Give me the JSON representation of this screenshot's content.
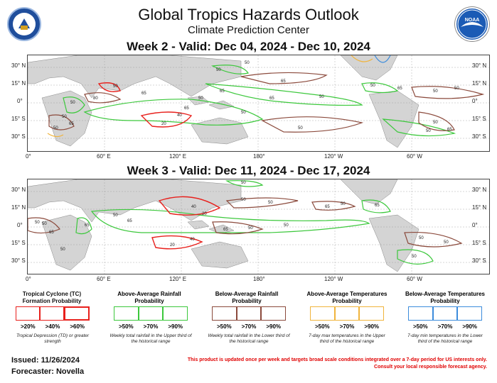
{
  "header": {
    "title": "Global Tropics Hazards Outlook",
    "subtitle": "Climate Prediction Center",
    "logo_left": "doc-seal-icon",
    "logo_right": "noaa-logo-icon",
    "logo_right_text": "NOAA"
  },
  "week2": {
    "label": "Week 2 - Valid: Dec 04, 2024 - Dec 10, 2024"
  },
  "week3": {
    "label": "Week 3 - Valid: Dec 11, 2024 - Dec 17, 2024"
  },
  "axes": {
    "lat_labels": [
      "30° N",
      "15° N",
      "0°",
      "15° S",
      "30° S"
    ],
    "lat_labels_right": [
      "30° N",
      "15° N",
      "0°",
      "15° S",
      "30° S"
    ],
    "lon_labels": [
      "0°",
      "60° E",
      "120° E",
      "180°",
      "120° W",
      "60° W"
    ]
  },
  "contour_labels": {
    "week2": [
      "50",
      "65",
      "80",
      "50",
      "65",
      "20",
      "40",
      "65",
      "50",
      "65",
      "50",
      "50",
      "65",
      "50",
      "50",
      "65",
      "50",
      "50",
      "65",
      "50",
      "50",
      "50",
      "50",
      "50",
      "65",
      "50"
    ],
    "week3": [
      "50",
      "50",
      "20",
      "40",
      "65",
      "65",
      "50",
      "65",
      "50",
      "50",
      "65",
      "50",
      "20",
      "40",
      "50",
      "65",
      "50",
      "50",
      "50",
      "50",
      "50",
      "65",
      "50"
    ]
  },
  "legend": {
    "tc": {
      "title": "Tropical Cyclone (TC) Formation Probability",
      "levels": [
        ">20%",
        ">40%",
        ">60%"
      ],
      "note": "Tropical Depression (TD) or greater strength",
      "color": "#e8201c"
    },
    "rain_above": {
      "title": "Above-Average Rainfall Probability",
      "levels": [
        ">50%",
        ">70%",
        ">90%"
      ],
      "note": "Weekly total rainfall in the Upper third of the historical range",
      "color": "#3cc83c"
    },
    "rain_below": {
      "title": "Below-Average Rainfall Probability",
      "levels": [
        ">50%",
        ">70%",
        ">90%"
      ],
      "note": "Weekly total rainfall in the Lower third of the historical range",
      "color": "#8b4a3c"
    },
    "temp_above": {
      "title": "Above-Average Temperatures Probability",
      "levels": [
        ">50%",
        ">70%",
        ">90%"
      ],
      "note": "7-day max temperatures in the Upper third of the historical range",
      "color": "#f0b43c"
    },
    "temp_below": {
      "title": "Below-Average Temperatures Probability",
      "levels": [
        ">50%",
        ">70%",
        ">90%"
      ],
      "note": "7-day min temperatures in the Lower third of the historical range",
      "color": "#3c8cdc"
    }
  },
  "footer": {
    "issued": "Issued: 11/26/2024",
    "forecaster": "Forecaster: Novella",
    "disclaimer_line1": "This product is updated once per week and targets broad scale conditions integrated over a 7-day period for US interests only.",
    "disclaimer_line2": "Consult your local responsible forecast agency."
  }
}
